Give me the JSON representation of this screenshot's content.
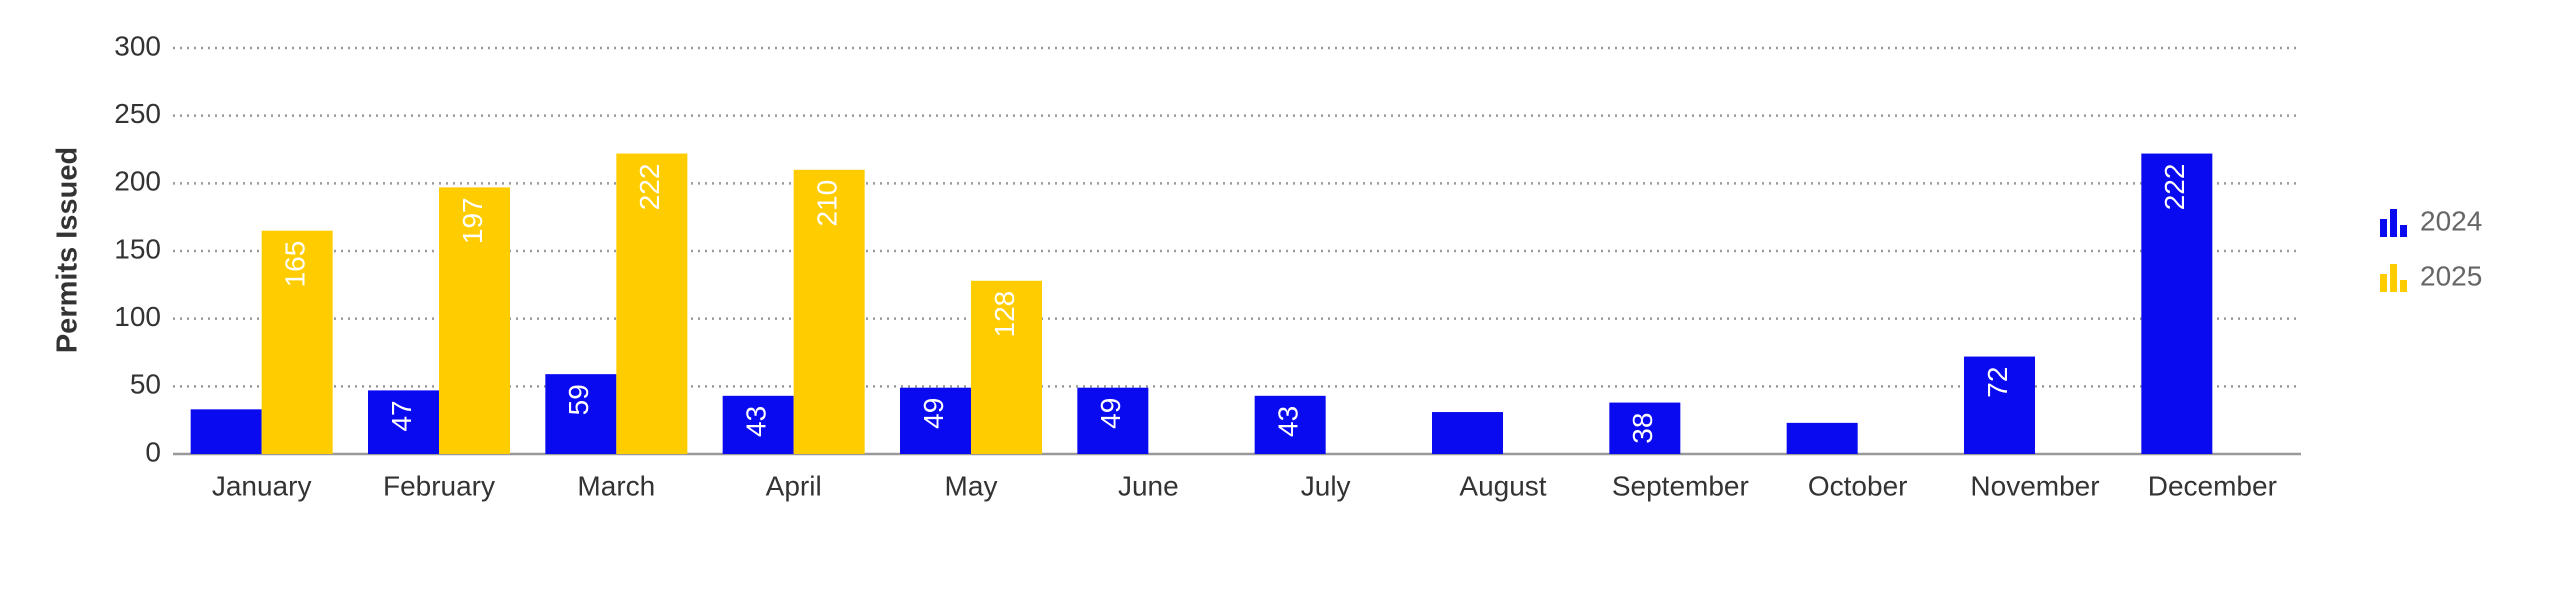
{
  "chart_data": {
    "type": "bar",
    "y_label": "Permits Issued",
    "categories": [
      "January",
      "February",
      "March",
      "April",
      "May",
      "June",
      "July",
      "August",
      "September",
      "October",
      "November",
      "December"
    ],
    "series": [
      {
        "name": "2024",
        "color": "#0a0af0",
        "values": [
          33,
          47,
          59,
          43,
          49,
          49,
          43,
          31,
          38,
          23,
          72,
          222
        ]
      },
      {
        "name": "2025",
        "color": "#ffcc00",
        "values": [
          165,
          197,
          222,
          210,
          128,
          null,
          null,
          null,
          null,
          null,
          null,
          null
        ]
      }
    ],
    "ylim": [
      0,
      300
    ],
    "yticks": [
      0,
      50,
      100,
      150,
      200,
      250,
      300
    ],
    "grid": true,
    "legend": "right"
  }
}
